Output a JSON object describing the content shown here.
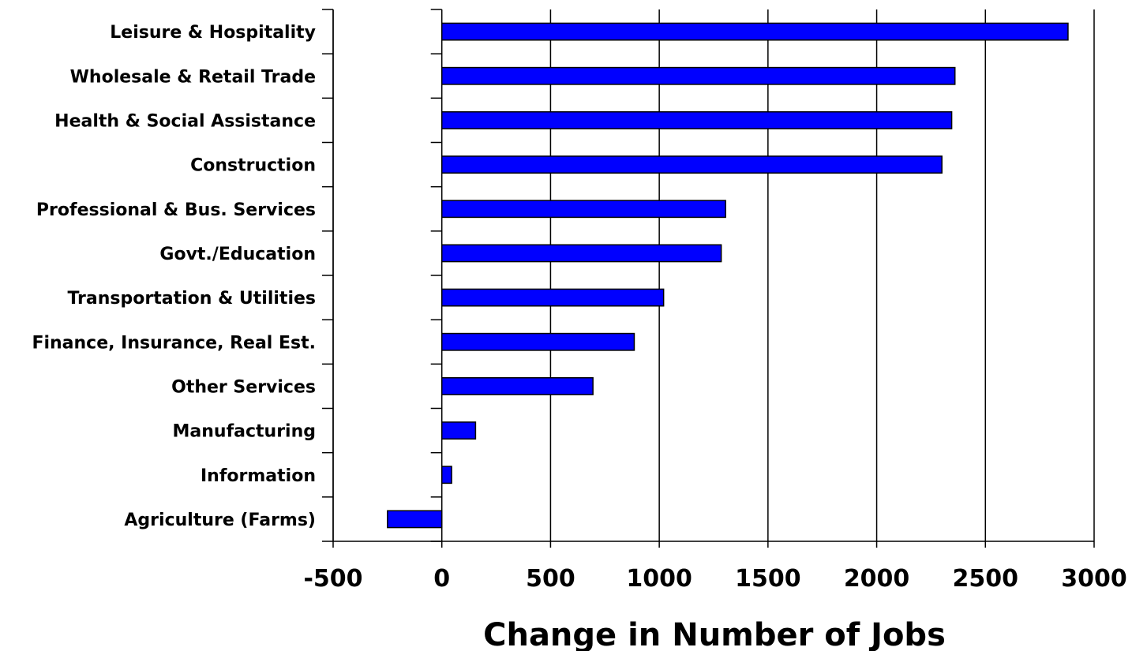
{
  "chart_data": {
    "type": "bar",
    "orientation": "horizontal",
    "title": "",
    "xlabel": "Change in Number of Jobs",
    "ylabel": "",
    "xlim": [
      -500,
      3000
    ],
    "xticks": [
      "-500",
      "0",
      "500",
      "1000",
      "1500",
      "2000",
      "2500",
      "3000"
    ],
    "grid": "vertical",
    "legend": "none",
    "bar_color": "#0000FF",
    "categories": [
      "Leisure & Hospitality",
      "Wholesale & Retail Trade",
      "Health & Social Assistance",
      "Construction",
      "Professional & Bus. Services",
      "Govt./Education",
      "Transportation & Utilities",
      "Finance, Insurance, Real Est.",
      "Other Services",
      "Manufacturing",
      "Information",
      "Agriculture (Farms)"
    ],
    "values": [
      2880,
      2360,
      2345,
      2300,
      1305,
      1285,
      1020,
      885,
      695,
      155,
      45,
      -250
    ]
  }
}
